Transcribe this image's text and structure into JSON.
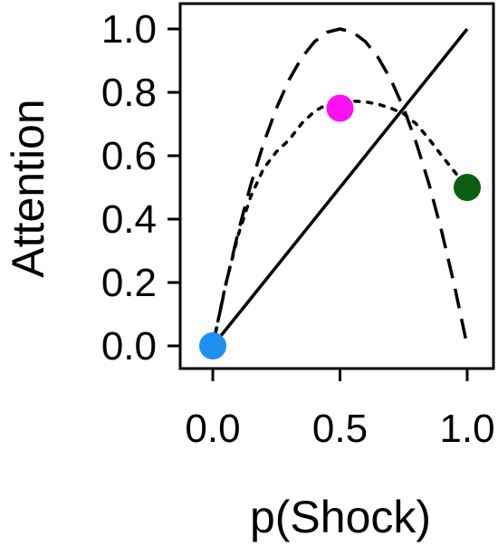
{
  "chart_data": {
    "type": "line",
    "title": "",
    "xlabel": "p(Shock)",
    "ylabel": "Attention",
    "xlim": [
      0,
      1
    ],
    "ylim": [
      0,
      1
    ],
    "x_ticks": [
      "0.0",
      "0.5",
      "1.0"
    ],
    "y_ticks": [
      "0.0",
      "0.2",
      "0.4",
      "0.6",
      "0.8",
      "1.0"
    ],
    "grid": false,
    "legend": "none",
    "series": [
      {
        "style": "solid",
        "color": "#000000",
        "x": [
          0.0,
          0.1,
          0.2,
          0.3,
          0.4,
          0.5,
          0.6,
          0.7,
          0.8,
          0.9,
          1.0
        ],
        "y": [
          0.0,
          0.1,
          0.2,
          0.3,
          0.4,
          0.5,
          0.6,
          0.7,
          0.8,
          0.9,
          1.0
        ]
      },
      {
        "style": "dashed",
        "color": "#000000",
        "x": [
          0.0,
          0.05,
          0.1,
          0.15,
          0.2,
          0.25,
          0.3,
          0.35,
          0.4,
          0.45,
          0.5,
          0.55,
          0.6,
          0.65,
          0.7,
          0.75,
          0.8,
          0.85,
          0.9,
          0.95,
          1.0
        ],
        "y": [
          0.0,
          0.19,
          0.36,
          0.51,
          0.64,
          0.75,
          0.84,
          0.91,
          0.96,
          0.99,
          1.0,
          0.99,
          0.96,
          0.91,
          0.84,
          0.75,
          0.64,
          0.51,
          0.36,
          0.19,
          0.0
        ]
      },
      {
        "style": "dotted",
        "color": "#000000",
        "x": [
          0.0,
          0.05,
          0.1,
          0.15,
          0.2,
          0.25,
          0.3,
          0.35,
          0.4,
          0.45,
          0.5,
          0.55,
          0.6,
          0.65,
          0.7,
          0.75,
          0.8,
          0.85,
          0.9,
          0.95,
          1.0
        ],
        "y": [
          0.0,
          0.1925,
          0.35,
          0.4725,
          0.56,
          0.6125,
          0.65,
          0.7025,
          0.74,
          0.7625,
          0.77,
          0.7725,
          0.77,
          0.7625,
          0.75,
          0.7325,
          0.7,
          0.6525,
          0.6,
          0.55,
          0.5
        ]
      }
    ],
    "points": [
      {
        "x": 0.0,
        "y": 0.0,
        "color": "#1f8ff0"
      },
      {
        "x": 0.5,
        "y": 0.75,
        "color": "#ff10f0"
      },
      {
        "x": 1.0,
        "y": 0.5,
        "color": "#0b5e10"
      }
    ]
  }
}
